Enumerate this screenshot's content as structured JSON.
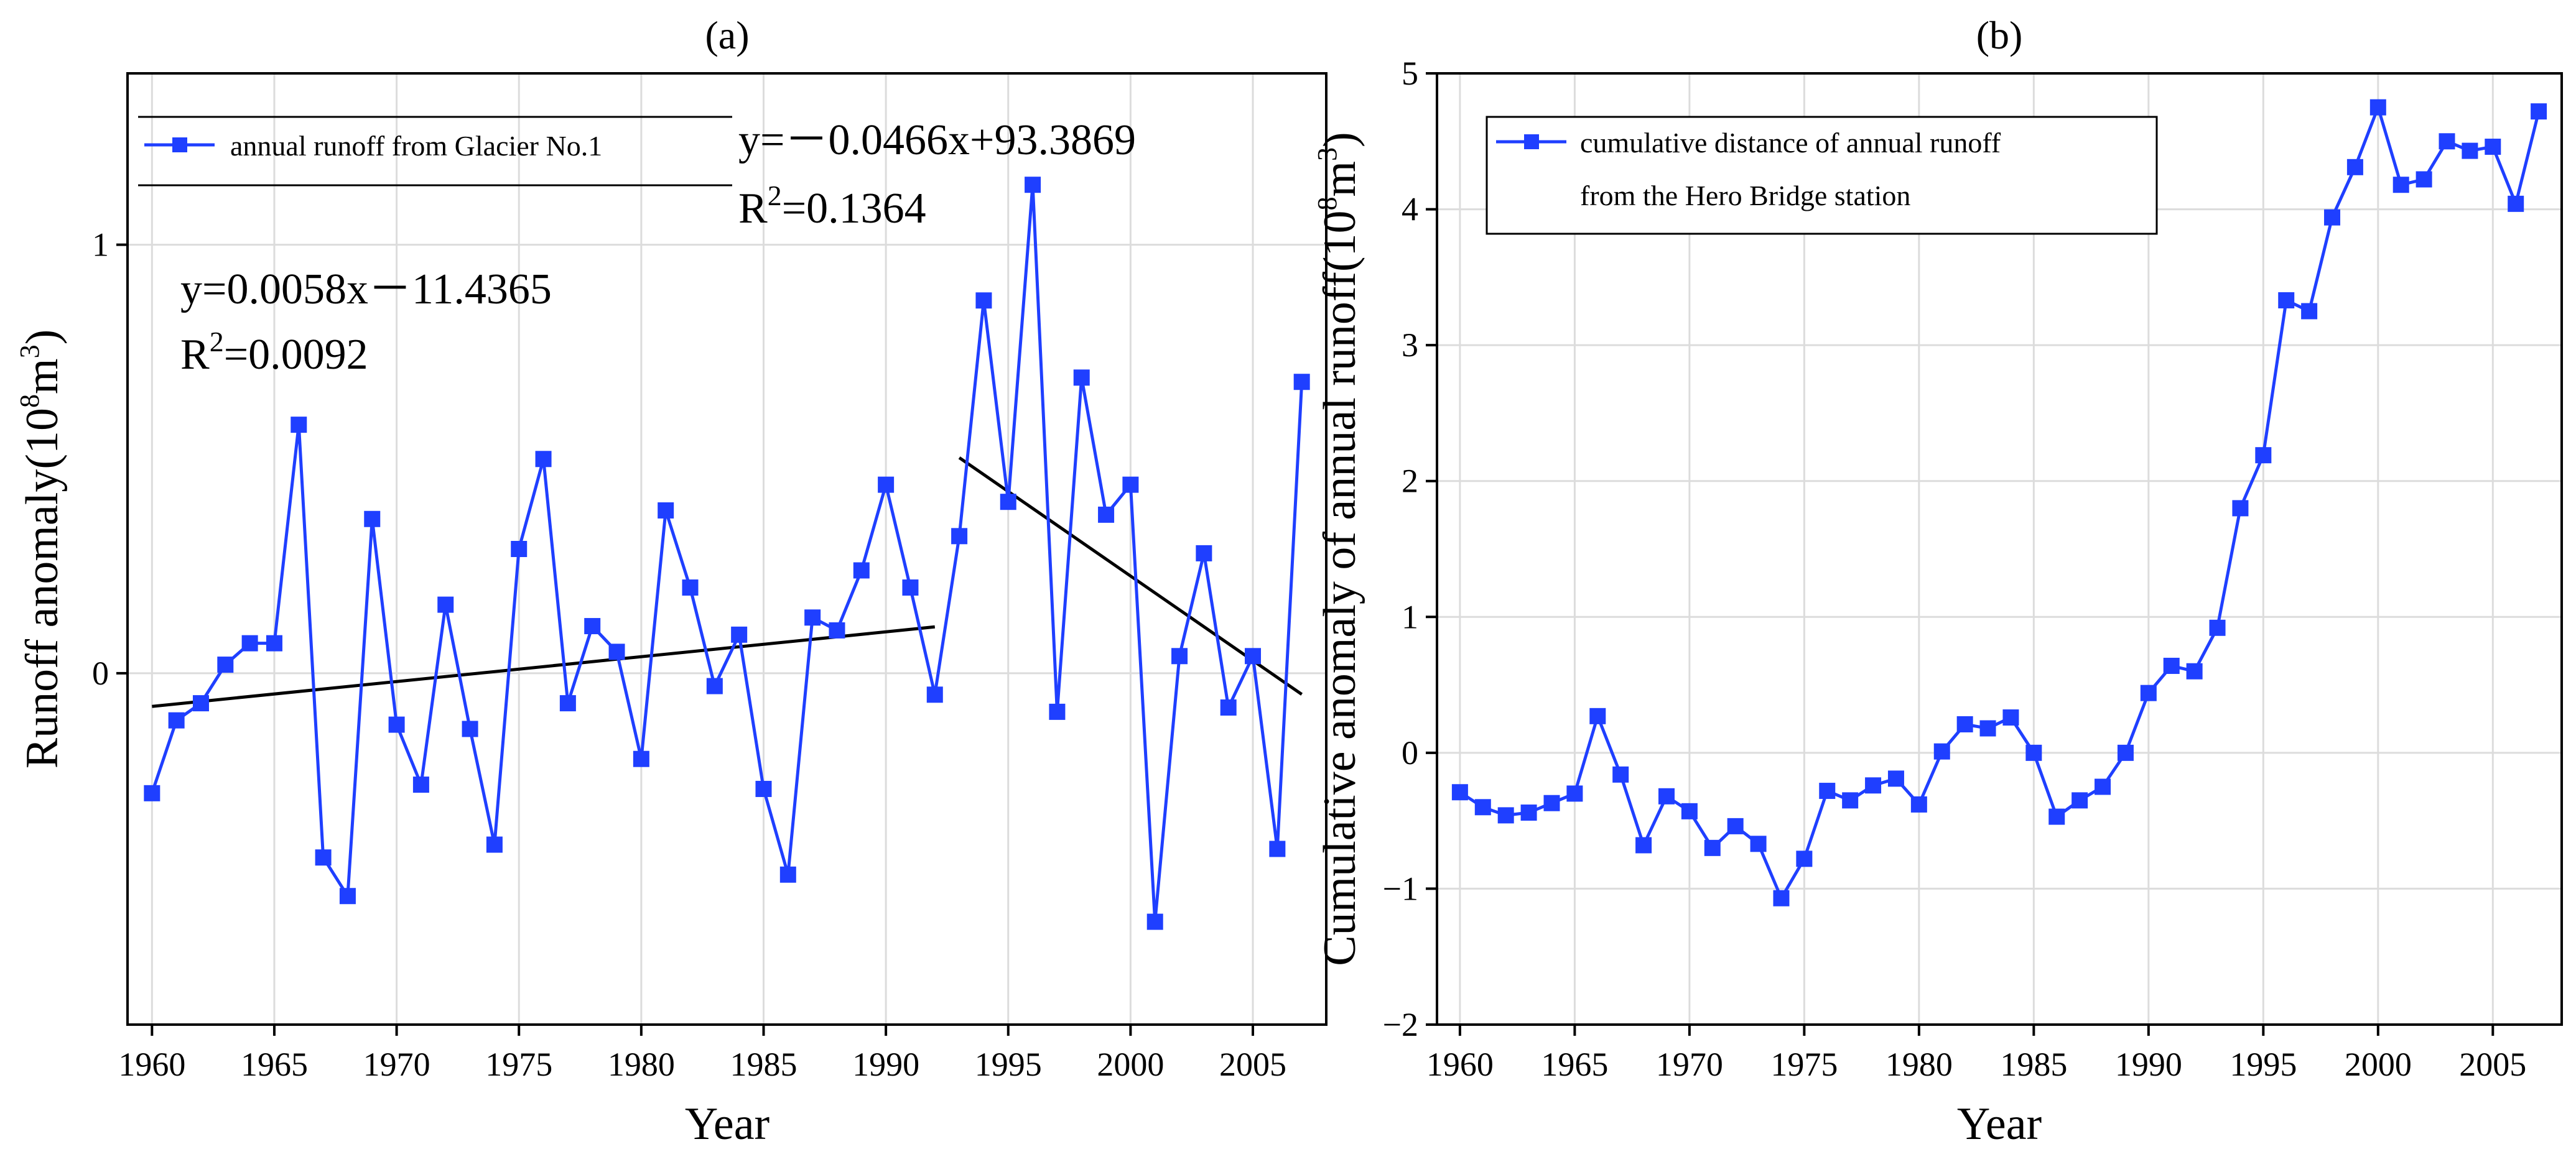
{
  "chart_data": [
    {
      "type": "line",
      "panel_label": "(a)",
      "xlabel": "Year",
      "ylabel": {
        "prefix": "Runoff anomaly(10",
        "sup": "8",
        "middle": "m",
        "sup2": "3",
        "suffix": ")"
      },
      "xlim": [
        1959,
        2008
      ],
      "ylim": [
        -0.82,
        1.4
      ],
      "xticks": [
        1960,
        1965,
        1970,
        1975,
        1980,
        1985,
        1990,
        1995,
        2000,
        2005
      ],
      "yticks": [
        0,
        1
      ],
      "grid": true,
      "legend": {
        "position": "top-left",
        "entries": [
          "annual runoff from Glacier No.1"
        ]
      },
      "series": [
        {
          "name": "annual runoff from Glacier No.1",
          "color": "#1f3fff",
          "x": [
            1960,
            1961,
            1962,
            1963,
            1964,
            1965,
            1966,
            1967,
            1968,
            1969,
            1970,
            1971,
            1972,
            1973,
            1974,
            1975,
            1976,
            1977,
            1978,
            1979,
            1980,
            1981,
            1982,
            1983,
            1984,
            1985,
            1986,
            1987,
            1988,
            1989,
            1990,
            1991,
            1992,
            1993,
            1994,
            1995,
            1996,
            1997,
            1998,
            1999,
            2000,
            2001,
            2002,
            2003,
            2004,
            2005,
            2006,
            2007
          ],
          "y": [
            -0.28,
            -0.11,
            -0.07,
            0.02,
            0.07,
            0.07,
            0.58,
            -0.43,
            -0.52,
            0.36,
            -0.12,
            -0.26,
            0.16,
            -0.13,
            -0.4,
            0.29,
            0.5,
            -0.07,
            0.11,
            0.05,
            -0.2,
            0.38,
            0.2,
            -0.03,
            0.09,
            -0.27,
            -0.47,
            0.13,
            0.1,
            0.24,
            0.44,
            0.2,
            -0.05,
            0.32,
            0.87,
            0.4,
            1.14,
            -0.09,
            0.69,
            0.37,
            0.44,
            -0.58,
            0.04,
            0.28,
            -0.08,
            0.04,
            -0.41,
            0.68
          ]
        }
      ],
      "trend_lines": [
        {
          "x": [
            1960,
            1992
          ],
          "y": [
            -0.0774,
            0.1082
          ],
          "equation": "y=0.0058x－11.4365",
          "r2_prefix": "R",
          "r2_sup": "2",
          "r2_value": "=0.0092"
        },
        {
          "x": [
            1993,
            2007
          ],
          "y": [
            0.5031,
            -0.0493
          ],
          "equation": "y=－0.0466x+93.3869",
          "r2_prefix": "R",
          "r2_sup": "2",
          "r2_value": "=0.1364"
        }
      ]
    },
    {
      "type": "line",
      "panel_label": "(b)",
      "xlabel": "Year",
      "ylabel": {
        "prefix": "Cumulative anomaly of annual runoff(10",
        "sup": "8",
        "middle": "m",
        "sup2": "3",
        "suffix": ")"
      },
      "xlim": [
        1959,
        2008
      ],
      "ylim": [
        -2,
        5
      ],
      "xticks": [
        1960,
        1965,
        1970,
        1975,
        1980,
        1985,
        1990,
        1995,
        2000,
        2005
      ],
      "yticks": [
        -2,
        -1,
        0,
        1,
        2,
        3,
        4,
        5
      ],
      "grid": true,
      "legend": {
        "position": "top-left",
        "entries": [
          "cumulative distance of annual runoff",
          "from the Hero Bridge station"
        ]
      },
      "series": [
        {
          "name": "cumulative distance of annual runoff from the Hero Bridge station",
          "color": "#1f3fff",
          "x": [
            1960,
            1961,
            1962,
            1963,
            1964,
            1965,
            1966,
            1967,
            1968,
            1969,
            1970,
            1971,
            1972,
            1973,
            1974,
            1975,
            1976,
            1977,
            1978,
            1979,
            1980,
            1981,
            1982,
            1983,
            1984,
            1985,
            1986,
            1987,
            1988,
            1989,
            1990,
            1991,
            1992,
            1993,
            1994,
            1995,
            1996,
            1997,
            1998,
            1999,
            2000,
            2001,
            2002,
            2003,
            2004,
            2005,
            2006,
            2007
          ],
          "y": [
            -0.29,
            -0.4,
            -0.46,
            -0.44,
            -0.37,
            -0.3,
            0.27,
            -0.16,
            -0.68,
            -0.32,
            -0.43,
            -0.7,
            -0.54,
            -0.67,
            -1.07,
            -0.78,
            -0.28,
            -0.35,
            -0.24,
            -0.19,
            -0.38,
            0.01,
            0.21,
            0.18,
            0.26,
            0.0,
            -0.47,
            -0.35,
            -0.25,
            0.0,
            0.44,
            0.64,
            0.6,
            0.92,
            1.8,
            2.19,
            3.33,
            3.25,
            3.94,
            4.31,
            4.75,
            4.18,
            4.22,
            4.5,
            4.43,
            4.46,
            4.04,
            4.72
          ]
        }
      ]
    }
  ],
  "colors": {
    "series": "#1f3fff",
    "trend": "#000000",
    "grid": "#dcdcdc",
    "axis": "#000000"
  }
}
